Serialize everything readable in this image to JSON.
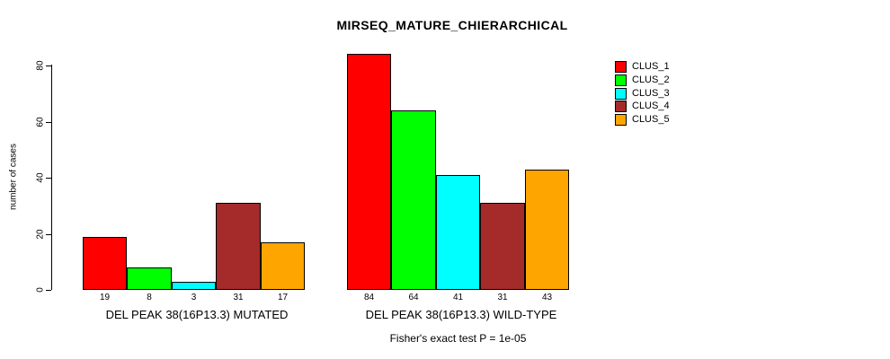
{
  "title": "MIRSEQ_MATURE_CHIERARCHICAL",
  "annotation": "Fisher's exact test P = 1e-05",
  "colors": {
    "bar_border": "#000000",
    "background": "#ffffff",
    "axis": "#000000"
  },
  "chart_data": {
    "type": "bar",
    "title": "MIRSEQ_MATURE_CHIERARCHICAL",
    "xlabel": "",
    "ylabel": "number of cases",
    "ylim": [
      0,
      80
    ],
    "yticks": [
      0,
      20,
      40,
      60,
      80
    ],
    "grid": false,
    "bar_value_labels": true,
    "legend_position": "right",
    "annotation": "Fisher's exact test P = 1e-05",
    "categories": [
      "DEL PEAK 38(16P13.3) MUTATED",
      "DEL PEAK 38(16P13.3) WILD-TYPE"
    ],
    "series": [
      {
        "name": "CLUS_1",
        "color": "#ff0000",
        "values": [
          19,
          84
        ]
      },
      {
        "name": "CLUS_2",
        "color": "#00ff00",
        "values": [
          8,
          64
        ]
      },
      {
        "name": "CLUS_3",
        "color": "#00ffff",
        "values": [
          3,
          41
        ]
      },
      {
        "name": "CLUS_4",
        "color": "#a52a2a",
        "values": [
          31,
          31
        ]
      },
      {
        "name": "CLUS_5",
        "color": "#ffa500",
        "values": [
          17,
          43
        ]
      }
    ]
  }
}
